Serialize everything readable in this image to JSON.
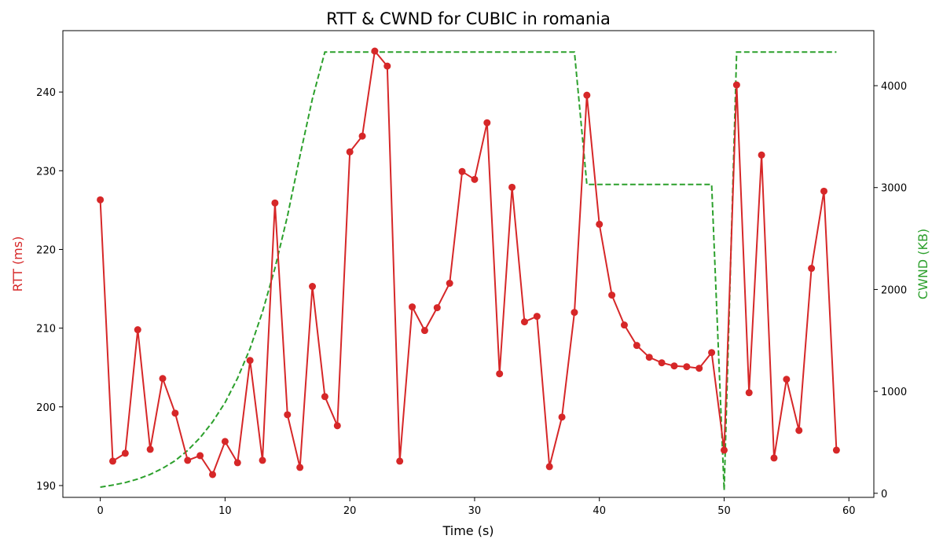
{
  "chart_data": {
    "type": "line",
    "title": "RTT & CWND for CUBIC in romania",
    "xlabel": "Time (s)",
    "ylabel_left": "RTT (ms)",
    "ylabel_right": "CWND (KB)",
    "xlim": [
      -3,
      62
    ],
    "ylim_left": [
      188.5,
      247.8
    ],
    "ylim_right": [
      -40,
      4540
    ],
    "xticks": [
      0,
      10,
      20,
      30,
      40,
      50,
      60
    ],
    "yticks_left": [
      190,
      200,
      210,
      220,
      230,
      240
    ],
    "yticks_right": [
      0,
      1000,
      2000,
      3000,
      4000
    ],
    "grid": false,
    "colors": {
      "rtt": "#d62728",
      "cwnd": "#2ca02c",
      "text": "#000000"
    },
    "series": [
      {
        "key": "rtt",
        "axis": "left",
        "style": "solid-with-markers",
        "x": [
          0,
          1,
          2,
          3,
          4,
          5,
          6,
          7,
          8,
          9,
          10,
          11,
          12,
          13,
          14,
          15,
          16,
          17,
          18,
          19,
          20,
          21,
          22,
          23,
          24,
          25,
          26,
          27,
          28,
          29,
          30,
          31,
          32,
          33,
          34,
          35,
          36,
          37,
          38,
          39,
          40,
          41,
          42,
          43,
          44,
          45,
          46,
          47,
          48,
          49,
          50,
          51,
          52,
          53,
          54,
          55,
          56,
          57,
          58,
          59
        ],
        "values": [
          226.3,
          193.1,
          194.1,
          209.8,
          194.6,
          203.6,
          199.2,
          193.2,
          193.8,
          191.4,
          195.6,
          192.9,
          205.9,
          193.2,
          225.9,
          199.0,
          192.3,
          215.3,
          201.3,
          197.6,
          232.4,
          234.4,
          245.2,
          243.3,
          193.1,
          212.7,
          209.7,
          212.6,
          215.7,
          229.9,
          228.9,
          236.1,
          204.2,
          227.9,
          210.8,
          211.5,
          192.4,
          198.7,
          212.0,
          239.6,
          223.2,
          214.2,
          210.4,
          207.8,
          206.3,
          205.6,
          205.2,
          205.1,
          204.9,
          206.9,
          194.5,
          240.9,
          201.8,
          232.0,
          193.5,
          203.5,
          197.0,
          217.6,
          227.4,
          194.5
        ]
      },
      {
        "key": "cwnd",
        "axis": "right",
        "style": "dashed",
        "x": [
          0,
          1,
          2,
          3,
          4,
          5,
          6,
          7,
          8,
          9,
          10,
          11,
          12,
          13,
          14,
          15,
          16,
          17,
          18,
          19,
          20,
          21,
          22,
          23,
          24,
          25,
          26,
          27,
          28,
          29,
          30,
          31,
          32,
          33,
          34,
          35,
          36,
          37,
          38,
          39,
          40,
          41,
          42,
          43,
          44,
          45,
          46,
          47,
          48,
          49,
          50,
          51,
          52,
          53,
          54,
          55,
          56,
          57,
          58,
          59
        ],
        "values": [
          60,
          80,
          105,
          140,
          185,
          245,
          320,
          420,
          545,
          700,
          890,
          1130,
          1420,
          1780,
          2210,
          2720,
          3310,
          3870,
          4330,
          4330,
          4330,
          4330,
          4330,
          4330,
          4330,
          4330,
          4330,
          4330,
          4330,
          4330,
          4330,
          4330,
          4330,
          4330,
          4330,
          4330,
          4330,
          4330,
          4330,
          3030,
          3030,
          3030,
          3030,
          3030,
          3030,
          3030,
          3030,
          3030,
          3030,
          3030,
          30,
          4330,
          4330,
          4330,
          4330,
          4330,
          4330,
          4330,
          4330,
          4330
        ]
      }
    ]
  }
}
